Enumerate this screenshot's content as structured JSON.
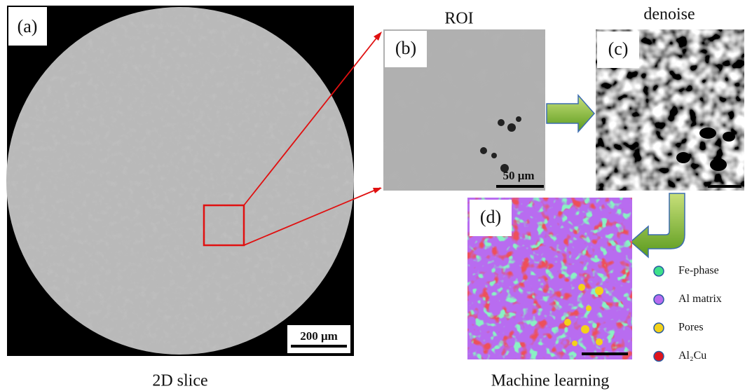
{
  "panels": {
    "a": {
      "label": "(a)",
      "scale": "200 μm",
      "caption": "2D slice"
    },
    "b": {
      "label": "(b)",
      "title": "ROI",
      "scale": "50 μm"
    },
    "c": {
      "label": "(c)",
      "title": "denoise"
    },
    "d": {
      "label": "(d)",
      "caption": "Machine learning"
    }
  },
  "legend": [
    {
      "name": "Fe-phase",
      "color": "#3ee08a"
    },
    {
      "name": "Al matrix",
      "color": "#b86cf0"
    },
    {
      "name": "Pores",
      "color": "#f3d21a"
    },
    {
      "name": "Al₂Cu",
      "color": "#e0141c"
    }
  ]
}
